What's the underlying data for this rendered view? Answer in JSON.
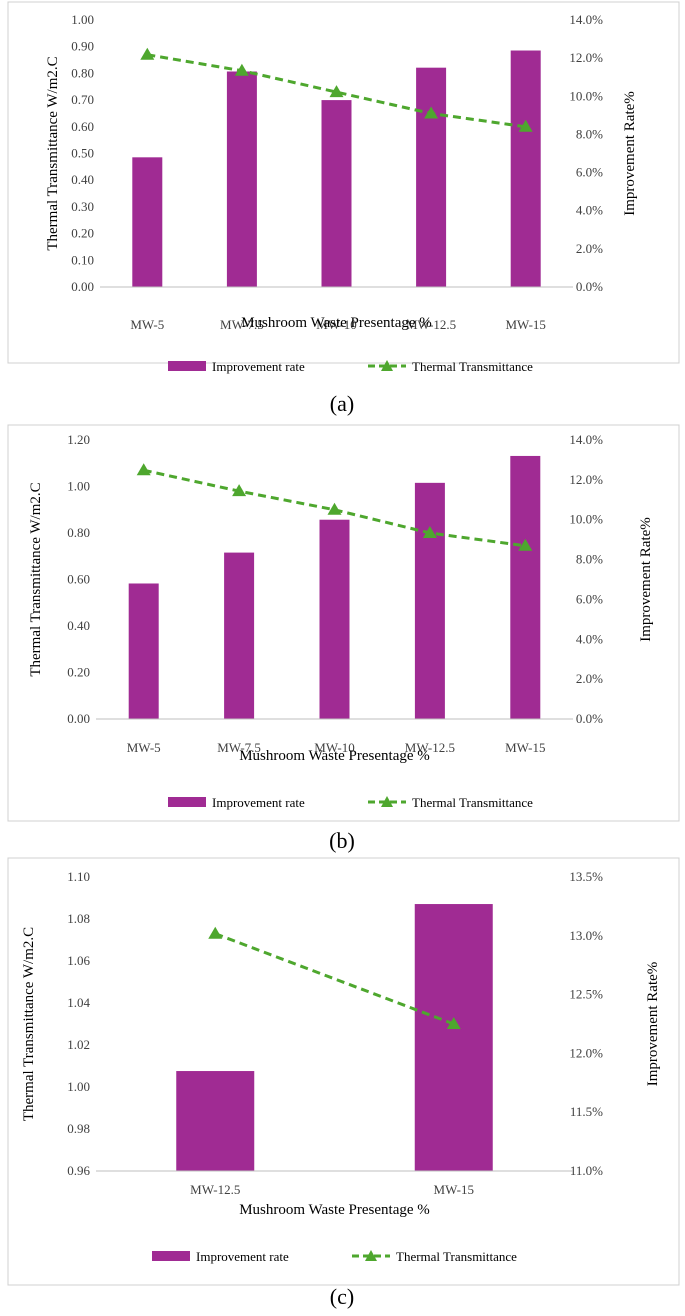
{
  "colors": {
    "bar": "#A02B93",
    "line": "#4EA72E",
    "frame": "#D0D0D0",
    "axis": "#BFBFBF"
  },
  "chart_data": [
    {
      "panel": "a",
      "caption": "(a)",
      "type": "bar",
      "categories": [
        "MW-5",
        "MW-7.5",
        "MW-10",
        "MW-12.5",
        "MW-15"
      ],
      "xlabel": "Mushroom Waste Presentage %",
      "ylabel_left": "Thermal Transmittance  W/m2.C",
      "ylabel_right": "Improvement Rate%",
      "ylim_left": [
        0,
        1.0
      ],
      "yticks_left": [
        "0.00",
        "0.10",
        "0.20",
        "0.30",
        "0.40",
        "0.50",
        "0.60",
        "0.70",
        "0.80",
        "0.90",
        "1.00"
      ],
      "ylim_right": [
        0,
        14
      ],
      "yticks_right": [
        "0.0%",
        "2.0%",
        "4.0%",
        "6.0%",
        "8.0%",
        "10.0%",
        "12.0%",
        "14.0%"
      ],
      "series": [
        {
          "name": "Improvement rate",
          "type": "bar",
          "axis": "right",
          "values": [
            6.8,
            11.3,
            9.8,
            11.5,
            12.4
          ]
        },
        {
          "name": "Thermal Transmittance",
          "type": "line",
          "axis": "left",
          "values": [
            0.87,
            0.81,
            0.73,
            0.65,
            0.6
          ]
        }
      ],
      "legend": [
        "Improvement rate",
        "Thermal Transmittance"
      ]
    },
    {
      "panel": "b",
      "caption": "(b)",
      "type": "bar",
      "categories": [
        "MW-5",
        "MW-7.5",
        "MW-10",
        "MW-12.5",
        "MW-15"
      ],
      "xlabel": "Mushroom Waste Presentage %",
      "ylabel_left": "Thermal Transmittance  W/m2.C",
      "ylabel_right": "Improvement Rate%",
      "ylim_left": [
        0,
        1.2
      ],
      "yticks_left": [
        "0.00",
        "0.20",
        "0.40",
        "0.60",
        "0.80",
        "1.00",
        "1.20"
      ],
      "ylim_right": [
        0,
        14
      ],
      "yticks_right": [
        "0.0%",
        "2.0%",
        "4.0%",
        "6.0%",
        "8.0%",
        "10.0%",
        "12.0%",
        "14.0%"
      ],
      "series": [
        {
          "name": "Improvement rate",
          "type": "bar",
          "axis": "right",
          "values": [
            6.8,
            8.35,
            10.0,
            11.85,
            13.2
          ]
        },
        {
          "name": "Thermal Transmittance",
          "type": "line",
          "axis": "left",
          "values": [
            1.07,
            0.98,
            0.9,
            0.8,
            0.745
          ]
        }
      ],
      "legend": [
        "Improvement rate",
        "Thermal Transmittance"
      ]
    },
    {
      "panel": "c",
      "caption": "(c)",
      "type": "bar",
      "categories": [
        "MW-12.5",
        "MW-15"
      ],
      "xlabel": "Mushroom Waste Presentage %",
      "ylabel_left": "Thermal Transmittance  W/m2.C",
      "ylabel_right": "Improvement Rate%",
      "ylim_left": [
        0.96,
        1.1
      ],
      "yticks_left": [
        "0.96",
        "0.98",
        "1.00",
        "1.02",
        "1.04",
        "1.06",
        "1.08",
        "1.10"
      ],
      "ylim_right": [
        11.0,
        13.5
      ],
      "yticks_right": [
        "11.0%",
        "11.5%",
        "12.0%",
        "12.5%",
        "13.0%",
        "13.5%"
      ],
      "series": [
        {
          "name": "Improvement rate",
          "type": "bar",
          "axis": "right",
          "values": [
            11.85,
            13.27
          ]
        },
        {
          "name": "Thermal Transmittance",
          "type": "line",
          "axis": "left",
          "values": [
            1.073,
            1.03
          ]
        }
      ],
      "legend": [
        "Improvement rate",
        "Thermal Transmittance"
      ]
    }
  ]
}
